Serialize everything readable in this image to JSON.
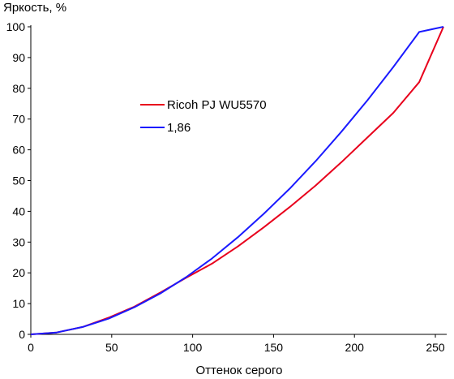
{
  "chart_data": {
    "type": "line",
    "title": "",
    "xlabel": "Оттенок серого",
    "ylabel": "Яркость, %",
    "xlim": [
      0,
      255
    ],
    "ylim": [
      0,
      100
    ],
    "x_ticks": [
      0,
      50,
      100,
      150,
      200,
      250
    ],
    "y_ticks": [
      0,
      10,
      20,
      30,
      40,
      50,
      60,
      70,
      80,
      90,
      100
    ],
    "grid": false,
    "legend": "upper-left-inside",
    "series": [
      {
        "name": "Ricoh PJ WU5570",
        "color": "#e8001c",
        "x": [
          0,
          16,
          32,
          48,
          64,
          80,
          96,
          112,
          128,
          144,
          160,
          176,
          192,
          208,
          224,
          240,
          255
        ],
        "y": [
          0,
          0.6,
          2.4,
          5.4,
          9.0,
          13.6,
          18.4,
          23.0,
          28.6,
          34.8,
          41.4,
          48.4,
          56.0,
          64.0,
          72.0,
          82.0,
          100
        ]
      },
      {
        "name": "1,86",
        "color": "#1a1aff",
        "x": [
          0,
          16,
          32,
          48,
          64,
          80,
          96,
          112,
          128,
          144,
          160,
          176,
          192,
          208,
          224,
          240,
          255
        ],
        "y": [
          0,
          0.6,
          2.4,
          5.1,
          8.8,
          13.3,
          18.6,
          24.7,
          31.6,
          39.2,
          47.4,
          56.3,
          65.9,
          76.1,
          86.9,
          98.3,
          100
        ]
      }
    ]
  }
}
